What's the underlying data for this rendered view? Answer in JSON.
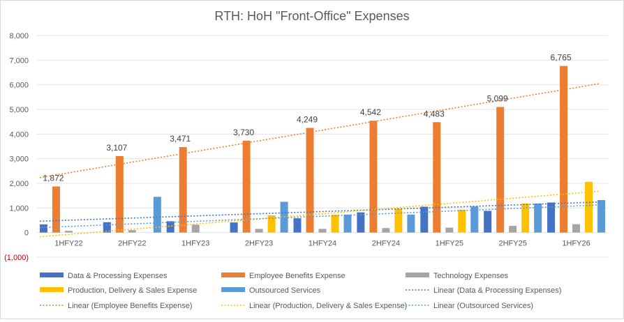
{
  "chart_data": {
    "type": "bar",
    "title": "RTH: HoH \"Front-Office\" Expenses",
    "xlabel": "",
    "ylabel": "",
    "ylim": [
      -1000,
      8000
    ],
    "yticks": [
      -1000,
      0,
      1000,
      2000,
      3000,
      4000,
      5000,
      6000,
      7000,
      8000
    ],
    "ytick_labels": [
      "(1,000)",
      "0",
      "1,000",
      "2,000",
      "3,000",
      "4,000",
      "5,000",
      "6,000",
      "7,000",
      "8,000"
    ],
    "grid": true,
    "legend_position": "bottom",
    "categories": [
      "1HFY22",
      "2HFY22",
      "1HFY23",
      "2HFY23",
      "1HFY24",
      "2HFY24",
      "1HFY25",
      "2HFY25",
      "1HFY26"
    ],
    "series": [
      {
        "name": "Data & Processing Expenses",
        "color": "#4472c4",
        "values": [
          330,
          420,
          460,
          410,
          580,
          820,
          1050,
          880,
          1220
        ]
      },
      {
        "name": "Employee Benefits Expense",
        "color": "#ed7d31",
        "values": [
          1872,
          3107,
          3471,
          3730,
          4249,
          4542,
          4483,
          5099,
          6765
        ],
        "data_labels": [
          "1,872",
          "3,107",
          "3,471",
          "3,730",
          "4,249",
          "4,542",
          "4,483",
          "5,099",
          "6,765"
        ]
      },
      {
        "name": "Technology Expenses",
        "color": "#a5a5a5",
        "values": [
          70,
          100,
          320,
          150,
          150,
          180,
          200,
          270,
          340
        ]
      },
      {
        "name": "Production, Delivery & Sales Expense",
        "color": "#ffc000",
        "values": [
          0,
          0,
          0,
          700,
          720,
          970,
          930,
          1180,
          2060
        ]
      },
      {
        "name": "Outsourced Services",
        "color": "#5b9bd5",
        "values": [
          0,
          1450,
          0,
          1250,
          730,
          730,
          1060,
          1180,
          1320
        ]
      }
    ],
    "trendlines": [
      {
        "name": "Linear (Data & Processing Expenses)",
        "color": "#4472c4",
        "start": 460,
        "end": 1240
      },
      {
        "name": "Linear (Employee Benefits Expense)",
        "color": "#ed7d31",
        "start": 2230,
        "end": 6050
      },
      {
        "name": "Linear (Production, Delivery & Sales Expense)",
        "color": "#ffc000",
        "start": -170,
        "end": 1680
      },
      {
        "name": "Linear (Outsourced Services)",
        "color": "#5b9bd5",
        "start": 200,
        "end": 1120
      }
    ]
  }
}
